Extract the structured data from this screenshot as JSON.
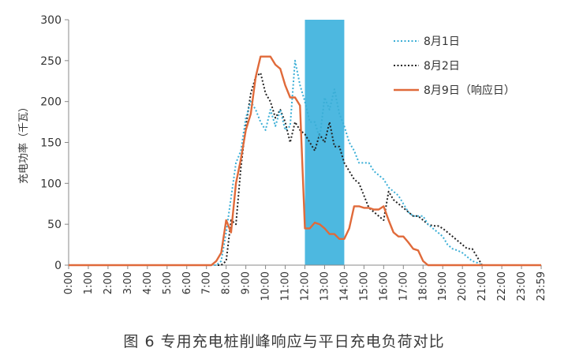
{
  "caption": "图 6   专用充电桩削峰响应与平日充电负荷对比",
  "chart_data": {
    "type": "line",
    "title": "",
    "xlabel": "",
    "ylabel": "充电功率（千瓦）",
    "ylim": [
      0,
      300
    ],
    "yticks": [
      0,
      50,
      100,
      150,
      200,
      250,
      300
    ],
    "xlim": [
      0,
      24
    ],
    "xticks": [
      "0:00",
      "1:00",
      "2:00",
      "3:00",
      "4:00",
      "5:00",
      "6:00",
      "7:00",
      "8:00",
      "9:00",
      "10:00",
      "11:00",
      "12:00",
      "13:00",
      "14:00",
      "15:00",
      "16:00",
      "17:00",
      "18:00",
      "19:00",
      "20:00",
      "21:00",
      "22:00",
      "23:00",
      "23:59"
    ],
    "grid": false,
    "legend_position": "top-right",
    "highlight_band": {
      "x_start": 12.0,
      "x_end": 14.0,
      "color": "#4db8e0"
    },
    "series": [
      {
        "name": "8月1日",
        "color": "#3aaed6",
        "style": "dotted",
        "points": [
          [
            0,
            0
          ],
          [
            7.5,
            0
          ],
          [
            7.75,
            5
          ],
          [
            8.0,
            40
          ],
          [
            8.5,
            125
          ],
          [
            8.75,
            140
          ],
          [
            9.0,
            180
          ],
          [
            9.25,
            200
          ],
          [
            9.5,
            190
          ],
          [
            9.75,
            175
          ],
          [
            10.0,
            165
          ],
          [
            10.25,
            190
          ],
          [
            10.5,
            170
          ],
          [
            10.75,
            190
          ],
          [
            11.0,
            165
          ],
          [
            11.25,
            170
          ],
          [
            11.5,
            250
          ],
          [
            11.75,
            220
          ],
          [
            12.0,
            200
          ],
          [
            12.25,
            175
          ],
          [
            12.5,
            175
          ],
          [
            12.75,
            155
          ],
          [
            13.0,
            205
          ],
          [
            13.25,
            190
          ],
          [
            13.5,
            215
          ],
          [
            13.75,
            185
          ],
          [
            14.0,
            170
          ],
          [
            14.25,
            150
          ],
          [
            14.5,
            140
          ],
          [
            14.75,
            125
          ],
          [
            15.0,
            125
          ],
          [
            15.25,
            125
          ],
          [
            15.5,
            115
          ],
          [
            15.75,
            110
          ],
          [
            16.0,
            105
          ],
          [
            16.25,
            95
          ],
          [
            16.5,
            90
          ],
          [
            16.75,
            85
          ],
          [
            17.0,
            75
          ],
          [
            17.25,
            65
          ],
          [
            17.5,
            60
          ],
          [
            17.75,
            60
          ],
          [
            18.0,
            60
          ],
          [
            18.25,
            50
          ],
          [
            18.5,
            45
          ],
          [
            18.75,
            40
          ],
          [
            19.0,
            35
          ],
          [
            19.25,
            25
          ],
          [
            19.5,
            20
          ],
          [
            19.75,
            18
          ],
          [
            20.0,
            15
          ],
          [
            20.25,
            10
          ],
          [
            20.5,
            5
          ],
          [
            20.75,
            3
          ],
          [
            21.0,
            0
          ],
          [
            24.0,
            0
          ]
        ]
      },
      {
        "name": "8月2日",
        "color": "#222222",
        "style": "dotted",
        "points": [
          [
            0,
            0
          ],
          [
            7.75,
            0
          ],
          [
            8.0,
            5
          ],
          [
            8.25,
            55
          ],
          [
            8.5,
            50
          ],
          [
            8.75,
            120
          ],
          [
            9.0,
            170
          ],
          [
            9.25,
            210
          ],
          [
            9.5,
            230
          ],
          [
            9.75,
            235
          ],
          [
            10.0,
            210
          ],
          [
            10.25,
            200
          ],
          [
            10.5,
            180
          ],
          [
            10.75,
            190
          ],
          [
            11.0,
            175
          ],
          [
            11.25,
            150
          ],
          [
            11.5,
            175
          ],
          [
            11.75,
            165
          ],
          [
            12.0,
            160
          ],
          [
            12.25,
            150
          ],
          [
            12.5,
            140
          ],
          [
            12.75,
            160
          ],
          [
            13.0,
            150
          ],
          [
            13.25,
            175
          ],
          [
            13.5,
            145
          ],
          [
            13.75,
            145
          ],
          [
            14.0,
            125
          ],
          [
            14.25,
            115
          ],
          [
            14.5,
            105
          ],
          [
            14.75,
            100
          ],
          [
            15.0,
            85
          ],
          [
            15.25,
            70
          ],
          [
            15.5,
            65
          ],
          [
            15.75,
            60
          ],
          [
            16.0,
            55
          ],
          [
            16.25,
            90
          ],
          [
            16.5,
            80
          ],
          [
            16.75,
            75
          ],
          [
            17.0,
            70
          ],
          [
            17.25,
            65
          ],
          [
            17.5,
            60
          ],
          [
            17.75,
            60
          ],
          [
            18.0,
            55
          ],
          [
            18.25,
            50
          ],
          [
            18.5,
            48
          ],
          [
            18.75,
            48
          ],
          [
            19.0,
            45
          ],
          [
            19.25,
            40
          ],
          [
            19.5,
            35
          ],
          [
            19.75,
            30
          ],
          [
            20.0,
            25
          ],
          [
            20.25,
            20
          ],
          [
            20.5,
            20
          ],
          [
            20.75,
            10
          ],
          [
            21.0,
            0
          ],
          [
            24.0,
            0
          ]
        ]
      },
      {
        "name": "8月9日（响应日）",
        "color": "#e06a3a",
        "style": "solid",
        "points": [
          [
            0,
            0
          ],
          [
            7.25,
            0
          ],
          [
            7.5,
            5
          ],
          [
            7.75,
            15
          ],
          [
            8.0,
            55
          ],
          [
            8.25,
            40
          ],
          [
            8.5,
            100
          ],
          [
            8.75,
            130
          ],
          [
            9.0,
            165
          ],
          [
            9.25,
            185
          ],
          [
            9.5,
            230
          ],
          [
            9.75,
            255
          ],
          [
            10.0,
            255
          ],
          [
            10.25,
            255
          ],
          [
            10.5,
            245
          ],
          [
            10.75,
            240
          ],
          [
            11.0,
            220
          ],
          [
            11.25,
            205
          ],
          [
            11.5,
            205
          ],
          [
            11.75,
            195
          ],
          [
            12.0,
            45
          ],
          [
            12.25,
            45
          ],
          [
            12.5,
            52
          ],
          [
            12.75,
            50
          ],
          [
            13.0,
            45
          ],
          [
            13.25,
            38
          ],
          [
            13.5,
            38
          ],
          [
            13.75,
            32
          ],
          [
            14.0,
            32
          ],
          [
            14.25,
            45
          ],
          [
            14.5,
            72
          ],
          [
            14.75,
            72
          ],
          [
            15.0,
            70
          ],
          [
            15.25,
            70
          ],
          [
            15.5,
            68
          ],
          [
            15.75,
            68
          ],
          [
            16.0,
            72
          ],
          [
            16.25,
            55
          ],
          [
            16.5,
            40
          ],
          [
            16.75,
            35
          ],
          [
            17.0,
            35
          ],
          [
            17.25,
            28
          ],
          [
            17.5,
            20
          ],
          [
            17.75,
            18
          ],
          [
            18.0,
            5
          ],
          [
            18.25,
            0
          ],
          [
            24.0,
            0
          ]
        ]
      }
    ]
  }
}
